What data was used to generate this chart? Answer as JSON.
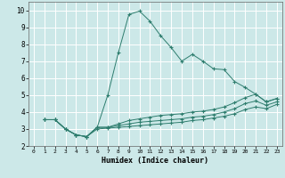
{
  "xlabel": "Humidex (Indice chaleur)",
  "bg_color": "#cce8e8",
  "grid_color": "#b0d4d4",
  "line_color": "#2e7d6e",
  "xlim": [
    -0.5,
    23.5
  ],
  "ylim": [
    2,
    10.5
  ],
  "xticks": [
    0,
    1,
    2,
    3,
    4,
    5,
    6,
    7,
    8,
    9,
    10,
    11,
    12,
    13,
    14,
    15,
    16,
    17,
    18,
    19,
    20,
    21,
    22,
    23
  ],
  "yticks": [
    2,
    3,
    4,
    5,
    6,
    7,
    8,
    9,
    10
  ],
  "lines": [
    {
      "x": [
        1,
        2,
        3,
        4,
        5,
        6,
        7,
        8,
        9,
        10,
        11,
        12,
        13,
        14,
        15,
        16,
        17,
        18,
        19,
        20,
        21,
        22,
        23
      ],
      "y": [
        3.55,
        3.55,
        3.0,
        2.65,
        2.55,
        3.1,
        5.0,
        7.5,
        9.75,
        9.95,
        9.35,
        8.5,
        7.8,
        7.0,
        7.4,
        7.0,
        6.55,
        6.5,
        5.8,
        5.45,
        5.05,
        4.6,
        4.8
      ]
    },
    {
      "x": [
        1,
        2,
        3,
        4,
        5,
        6,
        7,
        8,
        9,
        10,
        11,
        12,
        13,
        14,
        15,
        16,
        17,
        18,
        19,
        20,
        21,
        22,
        23
      ],
      "y": [
        3.55,
        3.55,
        3.0,
        2.65,
        2.55,
        3.1,
        3.1,
        3.3,
        3.5,
        3.6,
        3.7,
        3.8,
        3.85,
        3.9,
        4.0,
        4.05,
        4.15,
        4.3,
        4.55,
        4.85,
        5.05,
        4.6,
        4.8
      ]
    },
    {
      "x": [
        1,
        2,
        3,
        4,
        5,
        6,
        7,
        8,
        9,
        10,
        11,
        12,
        13,
        14,
        15,
        16,
        17,
        18,
        19,
        20,
        21,
        22,
        23
      ],
      "y": [
        3.55,
        3.55,
        3.0,
        2.65,
        2.55,
        3.1,
        3.1,
        3.2,
        3.3,
        3.4,
        3.45,
        3.5,
        3.55,
        3.6,
        3.7,
        3.75,
        3.85,
        4.0,
        4.2,
        4.5,
        4.65,
        4.4,
        4.6
      ]
    },
    {
      "x": [
        1,
        2,
        3,
        4,
        5,
        6,
        7,
        8,
        9,
        10,
        11,
        12,
        13,
        14,
        15,
        16,
        17,
        18,
        19,
        20,
        21,
        22,
        23
      ],
      "y": [
        3.55,
        3.55,
        3.0,
        2.65,
        2.55,
        3.0,
        3.05,
        3.1,
        3.15,
        3.2,
        3.25,
        3.3,
        3.35,
        3.4,
        3.5,
        3.55,
        3.65,
        3.75,
        3.9,
        4.15,
        4.3,
        4.2,
        4.45
      ]
    }
  ]
}
